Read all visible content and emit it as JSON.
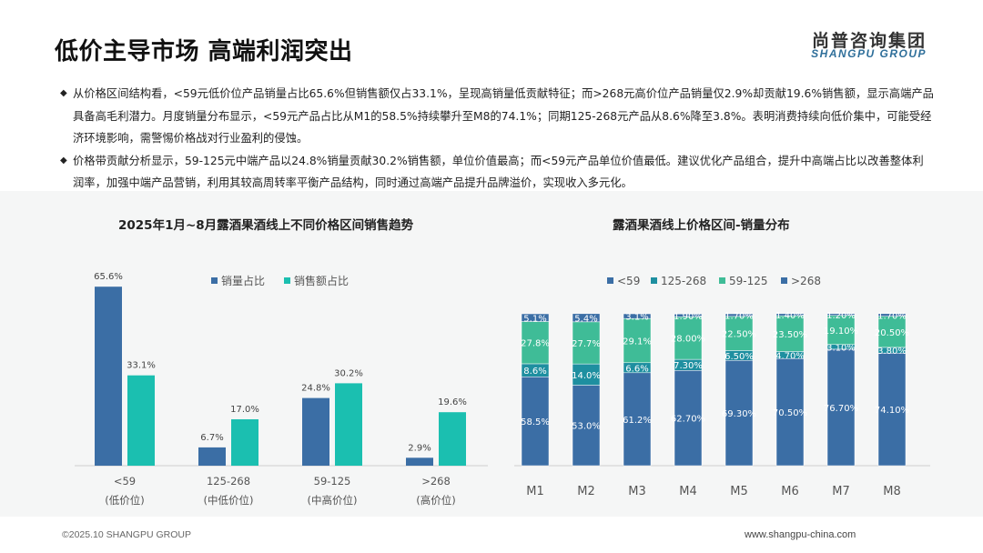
{
  "header": {
    "title": "低价主导市场 高端利润突出",
    "brand_cn": "尚普咨询集团",
    "brand_en": "SHANGPU GROUP"
  },
  "bullets": [
    {
      "mark": "◆",
      "text": "从价格区间结构看，<59元低价位产品销量占比65.6%但销售额仅占33.1%，呈现高销量低贡献特征；而>268元高价位产品销量仅2.9%却贡献19.6%销售额，显示高端产品具备高毛利潜力。月度销量分布显示，<59元产品占比从M1的58.5%持续攀升至M8的74.1%；同期125-268元产品从8.6%降至3.8%。表明消费持续向低价集中，可能受经济环境影响，需警惕价格战对行业盈利的侵蚀。"
    },
    {
      "mark": "◆",
      "text": "价格带贡献分析显示，59-125元中端产品以24.8%销量贡献30.2%销售额，单位价值最高；而<59元产品单位价值最低。建议优化产品组合，提升中高端占比以改善整体利润率，加强中端产品营销，利用其较高周转率平衡产品结构，同时通过高端产品提升品牌溢价，实现收入多元化。"
    }
  ],
  "chart_data": [
    {
      "type": "bar",
      "title": "2025年1月~8月露酒果酒线上不同价格区间销售趋势",
      "categories": [
        "<59",
        "125-268",
        "59-125",
        ">268"
      ],
      "category_sublabels": [
        "(低价位)",
        "(中低价位)",
        "(中高价位)",
        "(高价位)"
      ],
      "series": [
        {
          "name": "销量占比",
          "color": "#3b6ea5",
          "values": [
            65.6,
            6.7,
            24.8,
            2.9
          ],
          "labels": [
            "65.6%",
            "6.7%",
            "24.8%",
            "2.9%"
          ]
        },
        {
          "name": "销售额占比",
          "color": "#1bbfb0",
          "values": [
            33.1,
            17.0,
            30.2,
            19.6
          ],
          "labels": [
            "33.1%",
            "17.0%",
            "30.2%",
            "19.6%"
          ]
        }
      ],
      "ylim": [
        0,
        70
      ],
      "legend": "top-center",
      "grid": false
    },
    {
      "type": "bar",
      "stacked": true,
      "title": "露酒果酒线上价格区间-销量分布",
      "categories": [
        "M1",
        "M2",
        "M3",
        "M4",
        "M5",
        "M6",
        "M7",
        "M8"
      ],
      "series": [
        {
          "name": "<59",
          "color": "#3b6ea5",
          "values": [
            58.5,
            53.0,
            61.2,
            62.7,
            69.3,
            70.5,
            76.7,
            74.1
          ],
          "labels": [
            "58.5%",
            "53.0%",
            "61.2%",
            "62.70%",
            "69.30%",
            "70.50%",
            "76.70%",
            "74.10%"
          ]
        },
        {
          "name": "125-268",
          "color": "#1e8fa0",
          "values": [
            8.6,
            14.0,
            6.6,
            7.3,
            6.5,
            4.7,
            3.1,
            3.8
          ],
          "labels": [
            "8.6%",
            "14.0%",
            "6.6%",
            "7.30%",
            "6.50%",
            "4.70%",
            "3.10%",
            "3.80%"
          ]
        },
        {
          "name": "59-125",
          "color": "#3fbc97",
          "values": [
            27.8,
            27.7,
            29.1,
            28.0,
            22.5,
            23.5,
            19.1,
            20.5
          ],
          "labels": [
            "27.8%",
            "27.7%",
            "29.1%",
            "28.00%",
            "22.50%",
            "23.50%",
            "19.10%",
            "20.50%"
          ]
        },
        {
          "name": ">268",
          "color": "#3b6ea5",
          "values": [
            5.1,
            5.4,
            3.1,
            1.9,
            1.7,
            1.4,
            1.2,
            1.7
          ],
          "labels": [
            "5.1%",
            "5.4%",
            "3.1%",
            "1.90%",
            "1.70%",
            "1.40%",
            "1.20%",
            "1.70%"
          ]
        }
      ],
      "ylim": [
        0,
        100
      ],
      "legend": "top-center",
      "grid": false
    }
  ],
  "footer": {
    "left": "©2025.10 SHANGPU GROUP",
    "right": "www.shangpu-china.com"
  }
}
